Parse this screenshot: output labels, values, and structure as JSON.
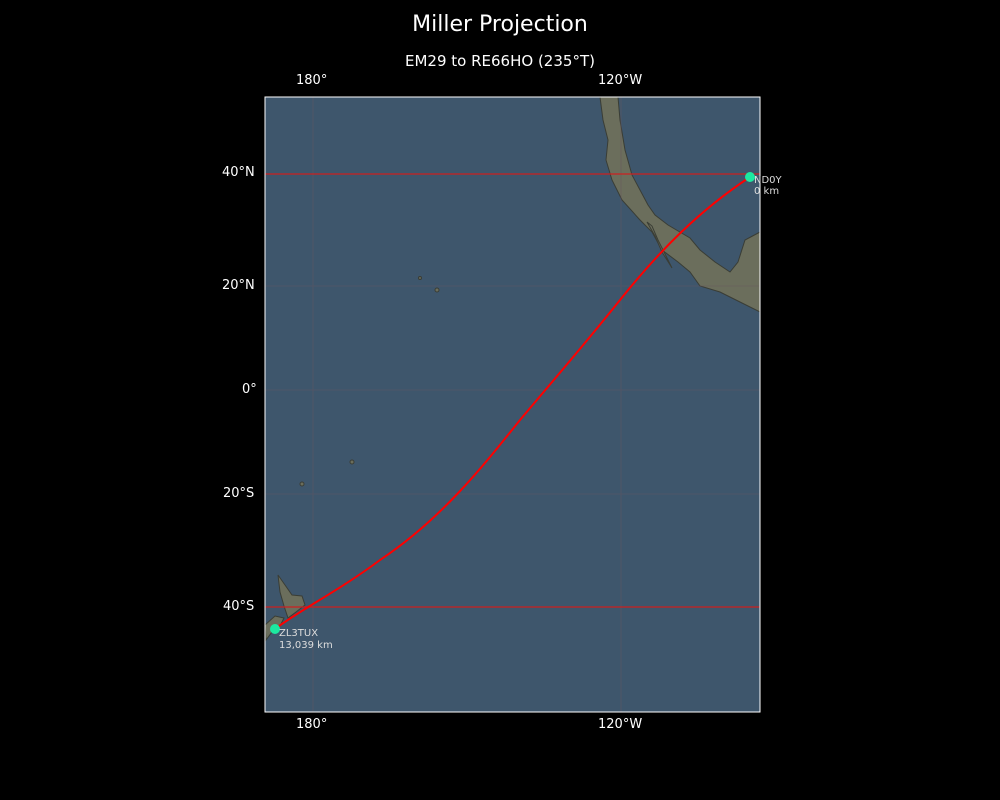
{
  "title": "Miller Projection",
  "subtitle": "EM29 to RE66HO (235°T)",
  "projection": "Miller",
  "lon_labels_top": [
    "180°",
    "120°W"
  ],
  "lon_labels_bottom": [
    "180°",
    "120°W"
  ],
  "lat_labels": [
    "40°N",
    "20°N",
    "0°",
    "20°S",
    "40°S"
  ],
  "highlight_latitudes": [
    "40°N",
    "40°S"
  ],
  "colors": {
    "path": "#ff0000",
    "marker": "#1de9a0",
    "ocean": "#3e566c",
    "land": "#6b6e5c",
    "highlight_grid": "#cc2020"
  },
  "stations": [
    {
      "call": "ND0Y",
      "distance": "0 km"
    },
    {
      "call": "ZL3TUX",
      "distance": "13,039 km"
    }
  ]
}
